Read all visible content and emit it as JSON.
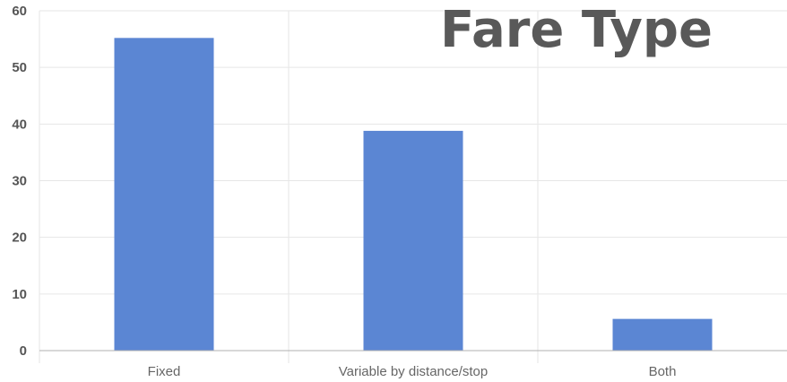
{
  "chart_data": {
    "type": "bar",
    "title": "Fare Type",
    "categories": [
      "Fixed",
      "Variable by distance/stop",
      "Both"
    ],
    "values": [
      55.2,
      38.8,
      5.6
    ],
    "xlabel": "",
    "ylabel": "",
    "ylim": [
      0,
      60
    ],
    "yticks": [
      0,
      10,
      20,
      30,
      40,
      50,
      60
    ],
    "grid": true,
    "legend": "none",
    "bar_color": "#5b86d3"
  }
}
